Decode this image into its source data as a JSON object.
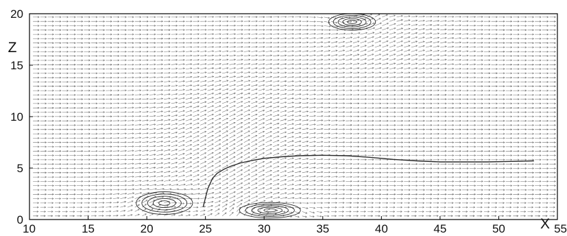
{
  "chart_data": {
    "type": "vector-field",
    "xlabel": "X",
    "ylabel": "Z",
    "xlim": [
      10,
      55
    ],
    "ylim": [
      0,
      20
    ],
    "xticks": [
      10,
      15,
      20,
      25,
      30,
      35,
      40,
      45,
      50,
      55
    ],
    "yticks": [
      0,
      5,
      10,
      15,
      20
    ],
    "grid": false,
    "colors": {
      "arrows": "#6e6e6e",
      "streamlines": "#2a2a2a",
      "frame": "#000000"
    },
    "vortices": [
      {
        "x": 21.5,
        "z": 1.6,
        "rx": 2.4,
        "rz": 1.1,
        "sense": "cw"
      },
      {
        "x": 30.5,
        "z": 0.9,
        "rx": 2.6,
        "rz": 0.75,
        "sense": "cw"
      },
      {
        "x": 37.5,
        "z": 19.2,
        "rx": 2.0,
        "rz": 0.8,
        "sense": "ccw"
      }
    ],
    "streamline": {
      "x": [
        24.8,
        25.2,
        25.6,
        26.0,
        26.6,
        27.2,
        28.0,
        29.0,
        30.0,
        31.5,
        33.0,
        35.0,
        37.0,
        39.0,
        41.0,
        43.0,
        45.0,
        47.0,
        49.0,
        51.0,
        53.0
      ],
      "z": [
        1.2,
        3.0,
        4.0,
        4.5,
        4.9,
        5.2,
        5.5,
        5.75,
        5.95,
        6.1,
        6.2,
        6.25,
        6.2,
        6.05,
        5.85,
        5.7,
        5.6,
        5.6,
        5.6,
        5.65,
        5.7
      ]
    }
  }
}
